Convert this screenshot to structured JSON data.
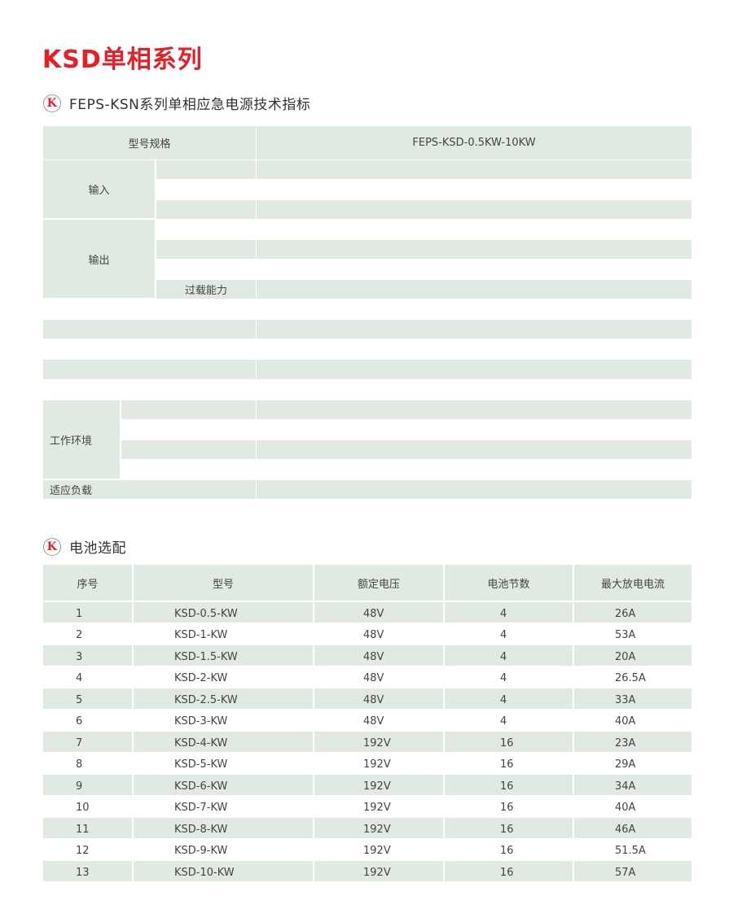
{
  "title": "KSD单相系列",
  "spec_section": {
    "icon": "k-logo-icon",
    "heading": "FEPS-KSN系列单相应急电源技术指标",
    "header_label": "型号规格",
    "header_value": "FEPS-KSD-0.5KW-10KW",
    "input_label": "输入",
    "output_label": "输出",
    "overload_label": "过载能力",
    "environment_label": "工作环境",
    "load_label": "适应负载"
  },
  "battery_section": {
    "icon": "k-logo-icon",
    "heading": "电池选配",
    "columns": [
      "序号",
      "型号",
      "额定电压",
      "电池节数",
      "最大放电电流"
    ],
    "rows": [
      [
        "1",
        "KSD-0.5-KW",
        "48V",
        "4",
        "26A"
      ],
      [
        "2",
        "KSD-1-KW",
        "48V",
        "4",
        "53A"
      ],
      [
        "3",
        "KSD-1.5-KW",
        "48V",
        "4",
        "20A"
      ],
      [
        "4",
        "KSD-2-KW",
        "48V",
        "4",
        "26.5A"
      ],
      [
        "5",
        "KSD-2.5-KW",
        "48V",
        "4",
        "33A"
      ],
      [
        "6",
        "KSD-3-KW",
        "48V",
        "4",
        "40A"
      ],
      [
        "7",
        "KSD-4-KW",
        "192V",
        "16",
        "23A"
      ],
      [
        "8",
        "KSD-5-KW",
        "192V",
        "16",
        "29A"
      ],
      [
        "9",
        "KSD-6-KW",
        "192V",
        "16",
        "34A"
      ],
      [
        "10",
        "KSD-7-KW",
        "192V",
        "16",
        "40A"
      ],
      [
        "11",
        "KSD-8-KW",
        "192V",
        "16",
        "46A"
      ],
      [
        "12",
        "KSD-9-KW",
        "192V",
        "16",
        "51.5A"
      ],
      [
        "13",
        "KSD-10-KW",
        "192V",
        "16",
        "57A"
      ]
    ]
  },
  "colors": {
    "title": "#e41f26",
    "row_fill": "#e1e9e3"
  }
}
